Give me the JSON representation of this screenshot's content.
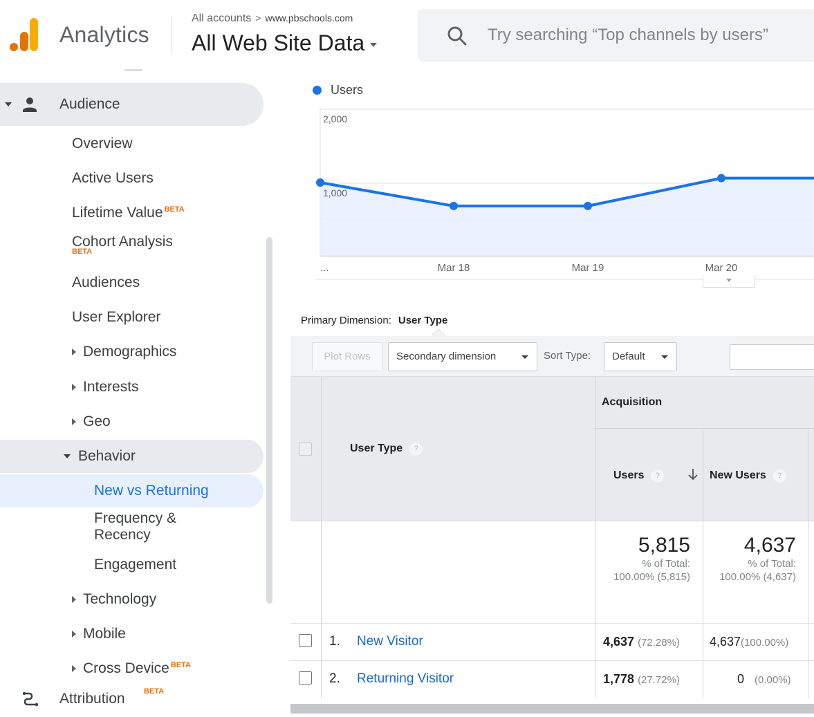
{
  "header": {
    "brand": "Analytics",
    "breadcrumb": {
      "account": "All accounts",
      "separator": ">",
      "property": "www.pbschools.com"
    },
    "view": "All Web Site Data",
    "search_placeholder": "Try searching “Top channels by users”"
  },
  "colors": {
    "accent": "#1a73e8",
    "logo_orange": "#f9ab00",
    "logo_dark": "#e37400",
    "beta": "#e8710a",
    "link": "#1967d2"
  },
  "sidebar": {
    "section": "Audience",
    "items": [
      {
        "label": "Overview"
      },
      {
        "label": "Active Users"
      },
      {
        "label": "Lifetime Value",
        "badge": "BETA"
      },
      {
        "label": "Cohort Analysis",
        "badge": "BETA"
      },
      {
        "label": "Audiences"
      },
      {
        "label": "User Explorer"
      },
      {
        "label": "Demographics"
      },
      {
        "label": "Interests"
      },
      {
        "label": "Geo"
      },
      {
        "label": "Behavior"
      },
      {
        "label": "Technology"
      },
      {
        "label": "Mobile"
      },
      {
        "label": "Cross Device",
        "badge": "BETA"
      }
    ],
    "behavior_children": [
      {
        "label": "New vs Returning"
      },
      {
        "label": "Frequency &"
      },
      {
        "label": "Recency"
      },
      {
        "label": "Engagement"
      }
    ],
    "attribution": {
      "label": "Attribution",
      "badge": "BETA"
    }
  },
  "chart_data": {
    "type": "line",
    "series": [
      {
        "name": "Users",
        "values": [
          1000,
          680,
          680,
          1060,
          1060
        ]
      }
    ],
    "x": [
      "...",
      "Mar 18",
      "Mar 19",
      "Mar 20",
      ""
    ],
    "y_ticks": [
      "2,000",
      "1,000"
    ],
    "ylim": [
      0,
      2000
    ],
    "grid": true
  },
  "chart_labels": {
    "yt2000": "2,000",
    "yt1000": "1,000",
    "x0": "...",
    "x1": "Mar 18",
    "x2": "Mar 19",
    "x3": "Mar 20"
  },
  "report": {
    "primary_dimension_label": "Primary Dimension:",
    "primary_dimension_value": "User Type",
    "toolbar": {
      "plot_rows": "Plot Rows",
      "secondary_dimension": "Secondary dimension",
      "sort_type_label": "Sort Type:",
      "sort_type_value": "Default"
    },
    "table": {
      "dimension_header": "User Type",
      "group_header": "Acquisition",
      "metrics": [
        "Users",
        "New Users"
      ],
      "totals": {
        "users": {
          "value": "5,815",
          "pct_label": "% of Total:",
          "pct": "100.00% (5,815)"
        },
        "new_users": {
          "value": "4,637",
          "pct_label": "% of Total:",
          "pct": "100.00% (4,637)"
        }
      },
      "rows": [
        {
          "index": "1.",
          "name": "New Visitor",
          "users": "4,637",
          "users_pct": "(72.28%)",
          "new_users": "4,637",
          "new_users_pct": "(100.00%)"
        },
        {
          "index": "2.",
          "name": "Returning Visitor",
          "users": "1,778",
          "users_pct": "(27.72%)",
          "new_users": "0",
          "new_users_pct": "(0.00%)"
        }
      ]
    }
  }
}
